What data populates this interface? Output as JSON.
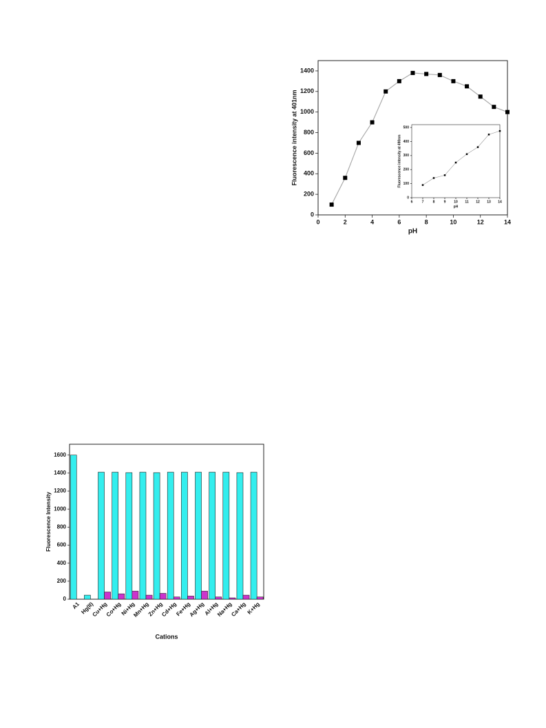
{
  "chart_data": [
    {
      "type": "line",
      "x": [
        1,
        2,
        3,
        4,
        5,
        6,
        7,
        8,
        9,
        10,
        11,
        12,
        13,
        14
      ],
      "values": [
        100,
        360,
        700,
        900,
        1200,
        1300,
        1380,
        1370,
        1360,
        1300,
        1250,
        1150,
        1050,
        1000
      ],
      "x_label": "pH",
      "y_label": "Fluorescence intensity at 401nm",
      "xlim": [
        0,
        14
      ],
      "xticks": [
        0,
        2,
        4,
        6,
        8,
        10,
        12,
        14
      ],
      "ylim": [
        0,
        1500
      ],
      "yticks": [
        0,
        200,
        400,
        600,
        800,
        1000,
        1200,
        1400
      ],
      "marker_color": "#000000",
      "line_color": "#aaaaaa"
    },
    {
      "type": "line",
      "x": [
        7,
        8,
        9,
        10,
        11,
        12,
        13,
        14
      ],
      "values": [
        90,
        140,
        160,
        250,
        310,
        360,
        450,
        475
      ],
      "x_label": "pH",
      "y_label": "Fluorescence intensity at 490nm",
      "xlim": [
        6,
        14
      ],
      "xticks": [
        6,
        7,
        8,
        9,
        10,
        11,
        12,
        13,
        14
      ],
      "ylim": [
        0,
        520
      ],
      "yticks": [
        0,
        100,
        200,
        300,
        400,
        500
      ],
      "marker_color": "#000000",
      "line_color": "#999999"
    },
    {
      "type": "bar",
      "categories": [
        "A1",
        "Hg(II)",
        "Cu+Hg",
        "Co+Hg",
        "Ni+Hg",
        "Mn+Hg",
        "Zn+Hg",
        "Cd+Hg",
        "Fe+Hg",
        "Ag+Hg",
        "Al+Hg",
        "Na+Hg",
        "Ca+Hg",
        "K+Hg"
      ],
      "series": [
        {
          "color": "#33eeee",
          "values": [
            1600,
            45,
            1410,
            1410,
            1405,
            1410,
            1405,
            1410,
            1410,
            1410,
            1410,
            1410,
            1405,
            1410
          ]
        },
        {
          "color": "#cc33cc",
          "values": [
            null,
            null,
            80,
            60,
            90,
            45,
            65,
            25,
            35,
            90,
            25,
            15,
            45,
            25
          ]
        }
      ],
      "x_label": "Cations",
      "y_label": "Fluorescence Intensity",
      "ylim": [
        0,
        1720
      ],
      "yticks": [
        0,
        200,
        400,
        600,
        800,
        1000,
        1200,
        1400,
        1600
      ]
    }
  ]
}
